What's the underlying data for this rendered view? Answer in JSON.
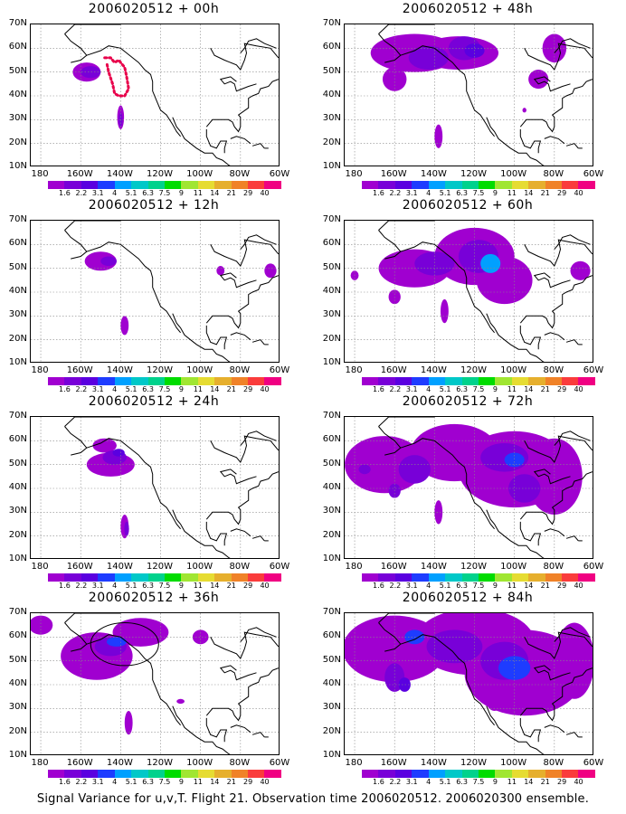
{
  "caption": "Signal Variance for u,v,T. Flight 21. Observation time 2006020512. 2006020300 ensemble.",
  "lat_labels": [
    "70N",
    "60N",
    "50N",
    "40N",
    "30N",
    "20N",
    "10N"
  ],
  "lon_labels": [
    "180",
    "160W",
    "140W",
    "120W",
    "100W",
    "80W",
    "60W"
  ],
  "colorbar": {
    "levels": [
      "1.6",
      "2.2",
      "3.1",
      "4",
      "5.1",
      "6.3",
      "7.5",
      "9",
      "11",
      "14",
      "21",
      "29",
      "40"
    ],
    "colors": [
      "#a000d0",
      "#7800d8",
      "#5a00e0",
      "#1e3cff",
      "#00a0ff",
      "#00c8c8",
      "#00d28c",
      "#00dc00",
      "#a0e632",
      "#e6dc32",
      "#e6af2d",
      "#f08228",
      "#fa3c3c",
      "#f00082"
    ]
  },
  "panels": [
    {
      "title": "2006020512 + 00h"
    },
    {
      "title": "2006020512 + 48h"
    },
    {
      "title": "2006020512 + 12h"
    },
    {
      "title": "2006020512 + 60h"
    },
    {
      "title": "2006020512 + 24h"
    },
    {
      "title": "2006020512 + 72h"
    },
    {
      "title": "2006020512 + 36h"
    },
    {
      "title": "2006020512 + 84h"
    }
  ]
}
